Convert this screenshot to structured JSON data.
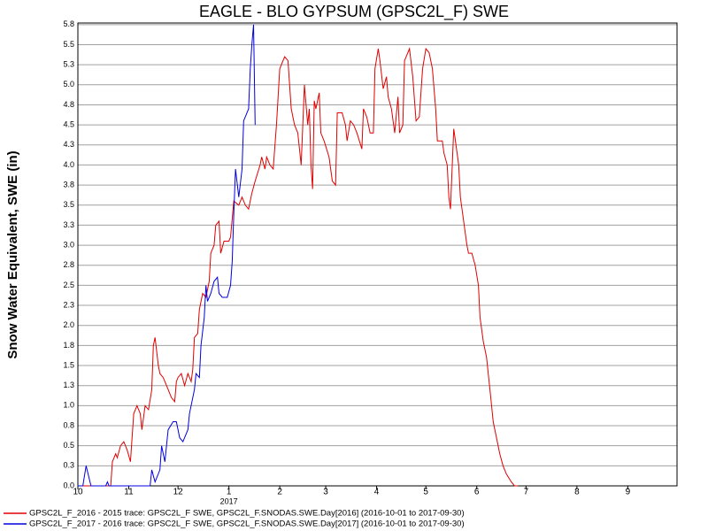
{
  "chart_data": {
    "type": "line",
    "title": "EAGLE - BLO GYPSUM (GPSC2L_F) SWE",
    "y_label": "Snow Water Equivalent, SWE (in)",
    "x_sublabel": "2017",
    "xlim": [
      0,
      365
    ],
    "xticks": [
      {
        "value": 0,
        "label": "10"
      },
      {
        "value": 31,
        "label": "11"
      },
      {
        "value": 61,
        "label": "12"
      },
      {
        "value": 92,
        "label": "1"
      },
      {
        "value": 123,
        "label": "2"
      },
      {
        "value": 151,
        "label": "3"
      },
      {
        "value": 182,
        "label": "4"
      },
      {
        "value": 212,
        "label": "5"
      },
      {
        "value": 243,
        "label": "6"
      },
      {
        "value": 273,
        "label": "7"
      },
      {
        "value": 304,
        "label": "8"
      },
      {
        "value": 335,
        "label": "9"
      }
    ],
    "ylim": [
      0,
      5.77
    ],
    "yticks": [
      {
        "value": 0,
        "label": "0.0"
      },
      {
        "value": 0.25,
        "label": "0.3"
      },
      {
        "value": 0.5,
        "label": "0.5"
      },
      {
        "value": 0.75,
        "label": "0.8"
      },
      {
        "value": 1,
        "label": "1.0"
      },
      {
        "value": 1.25,
        "label": "1.3"
      },
      {
        "value": 1.5,
        "label": "1.5"
      },
      {
        "value": 1.75,
        "label": "1.8"
      },
      {
        "value": 2,
        "label": "2.0"
      },
      {
        "value": 2.25,
        "label": "2.3"
      },
      {
        "value": 2.5,
        "label": "2.5"
      },
      {
        "value": 2.75,
        "label": "2.8"
      },
      {
        "value": 3,
        "label": "3.0"
      },
      {
        "value": 3.25,
        "label": "3.3"
      },
      {
        "value": 3.5,
        "label": "3.5"
      },
      {
        "value": 3.75,
        "label": "3.8"
      },
      {
        "value": 4,
        "label": "4.0"
      },
      {
        "value": 4.25,
        "label": "4.3"
      },
      {
        "value": 4.5,
        "label": "4.5"
      },
      {
        "value": 4.75,
        "label": "4.8"
      },
      {
        "value": 5,
        "label": "5.0"
      },
      {
        "value": 5.25,
        "label": "5.3"
      },
      {
        "value": 5.5,
        "label": "5.5"
      },
      {
        "value": 5.75,
        "label": "5.8"
      }
    ],
    "grid": true,
    "legend": "bottom",
    "series": [
      {
        "name": "GPSC2L_F_2016 - 2015 trace: GPSC2L_F SWE, GPSC2L_F.SNODAS.SWE.Day[2016] (2016-10-01 to 2017-09-30)",
        "color": "#e00000",
        "x": [
          0,
          20,
          21,
          23,
          24,
          26,
          28,
          30,
          32,
          34,
          36,
          38,
          39,
          41,
          43,
          45,
          46,
          47,
          49,
          50,
          52,
          54,
          57,
          59,
          60,
          61,
          63,
          65,
          67,
          69,
          70,
          71,
          73,
          74,
          76,
          78,
          80,
          81,
          83,
          84,
          86,
          87,
          89,
          92,
          93,
          95,
          98,
          100,
          102,
          104,
          106,
          108,
          111,
          112,
          114,
          115,
          117,
          119,
          121,
          123,
          125,
          126,
          128,
          130,
          132,
          134,
          136,
          138,
          140,
          141,
          142,
          143,
          144,
          145,
          147,
          148,
          150,
          153,
          155,
          157,
          158,
          161,
          163,
          164,
          166,
          168,
          170,
          173,
          174,
          176,
          178,
          180,
          181,
          183,
          184,
          186,
          188,
          189,
          191,
          193,
          195,
          196,
          198,
          199,
          202,
          204,
          206,
          208,
          210,
          212,
          214,
          216,
          218,
          219,
          222,
          223,
          225,
          226,
          227,
          229,
          230,
          232,
          233,
          235,
          237,
          238,
          240,
          242,
          244,
          245,
          247,
          249,
          251,
          253,
          255,
          257,
          259,
          261,
          264,
          266,
          268
        ],
        "values": [
          0,
          0,
          0.3,
          0.4,
          0.35,
          0.5,
          0.55,
          0.45,
          0.3,
          0.9,
          1.0,
          0.9,
          0.7,
          1.0,
          0.95,
          1.2,
          1.75,
          1.85,
          1.5,
          1.4,
          1.35,
          1.25,
          1.1,
          1.05,
          1.3,
          1.35,
          1.4,
          1.25,
          1.4,
          1.3,
          1.45,
          1.85,
          1.9,
          2.2,
          2.4,
          2.35,
          2.55,
          2.9,
          3.0,
          3.25,
          3.3,
          2.9,
          3.05,
          3.05,
          3.1,
          3.55,
          3.5,
          3.6,
          3.5,
          3.45,
          3.65,
          3.8,
          4.0,
          4.1,
          3.95,
          4.1,
          4.0,
          3.95,
          4.5,
          5.2,
          5.3,
          5.35,
          5.3,
          4.7,
          4.5,
          4.4,
          4.0,
          5.0,
          4.5,
          4.7,
          4.0,
          3.7,
          4.8,
          4.7,
          4.9,
          4.4,
          4.3,
          4.1,
          3.8,
          3.75,
          4.65,
          4.65,
          4.5,
          4.3,
          4.55,
          4.5,
          4.4,
          4.2,
          4.7,
          4.6,
          4.4,
          4.4,
          5.2,
          5.45,
          5.3,
          4.95,
          5.1,
          4.85,
          4.7,
          4.4,
          4.85,
          4.4,
          4.5,
          5.3,
          5.45,
          5.1,
          4.55,
          4.6,
          5.2,
          5.45,
          5.4,
          5.2,
          4.7,
          4.3,
          4.3,
          4.15,
          4.0,
          3.6,
          3.45,
          4.45,
          4.3,
          4.0,
          3.6,
          3.3,
          3.0,
          2.9,
          2.9,
          2.75,
          2.5,
          2.1,
          1.8,
          1.6,
          1.2,
          0.8,
          0.6,
          0.4,
          0.25,
          0.15,
          0.05,
          0,
          0
        ]
      },
      {
        "name": "GPSC2L_F_2017 - 2016 trace: GPSC2L_F SWE, GPSC2L_F.SNODAS.SWE.Day[2017] (2016-10-01 to 2017-09-30)",
        "color": "#0000e0",
        "x": [
          0,
          3,
          5,
          8,
          17,
          18,
          19,
          44,
          45,
          47,
          50,
          51,
          53,
          55,
          58,
          60,
          62,
          64,
          67,
          68,
          71,
          72,
          74,
          75,
          77,
          78,
          79,
          81,
          83,
          85,
          86,
          88,
          91,
          93,
          94,
          95,
          96,
          98,
          100,
          101,
          104,
          105,
          106,
          107,
          108
        ],
        "values": [
          0,
          0,
          0.25,
          0,
          0,
          0.05,
          0,
          0,
          0.2,
          0.05,
          0.2,
          0.5,
          0.3,
          0.7,
          0.8,
          0.8,
          0.6,
          0.55,
          0.7,
          0.9,
          1.2,
          1.4,
          1.35,
          1.75,
          2.1,
          2.5,
          2.3,
          2.4,
          2.55,
          2.6,
          2.4,
          2.35,
          2.35,
          2.5,
          2.8,
          3.4,
          3.95,
          3.6,
          3.95,
          4.55,
          4.7,
          5.2,
          5.5,
          5.75,
          4.5
        ]
      }
    ]
  }
}
